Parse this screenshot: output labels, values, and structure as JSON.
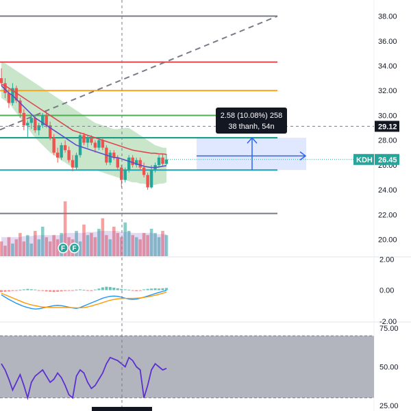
{
  "chart_data": {
    "type": "candlestick",
    "symbol": "KDH",
    "last_price": "26.45",
    "crosshair_price": "29.12",
    "price_axis": {
      "range": [
        18.6,
        39.3
      ],
      "ticks": [
        "38.00",
        "36.00",
        "34.00",
        "32.00",
        "30.00",
        "28.00",
        "26.00",
        "24.00",
        "22.00",
        "20.00"
      ]
    },
    "macd_axis": {
      "range": [
        -2.05,
        2.1
      ],
      "ticks": [
        "2.00",
        "0.00",
        "-2.00"
      ]
    },
    "rsi_axis": {
      "range": [
        21.5,
        78.5
      ],
      "ticks": [
        "75.00",
        "50.00",
        "25.00"
      ]
    },
    "rsi_band": [
      30,
      70
    ],
    "horizontal_levels": [
      {
        "price": 38.0,
        "color": "#787b86"
      },
      {
        "price": 34.3,
        "color": "#e0454f"
      },
      {
        "price": 32.0,
        "color": "#f7a21b"
      },
      {
        "price": 30.0,
        "color": "#4caf50"
      },
      {
        "price": 28.2,
        "color": "#089981"
      },
      {
        "price": 25.6,
        "color": "#26a0b0"
      },
      {
        "price": 22.1,
        "color": "#787b86"
      }
    ],
    "trend_line": {
      "from_price": 30.5,
      "to_price": 38.0
    },
    "measure_box": {
      "from_price": 25.6,
      "to_price": 28.2
    },
    "tooltip": {
      "line1": "2.58 (10.08%) 258",
      "line2": "38 thanh, 54n"
    },
    "markers": [
      "F",
      "F"
    ],
    "candles": [
      [
        33.0,
        33.8,
        32.4,
        32.6
      ],
      [
        32.6,
        33.0,
        31.4,
        31.8
      ],
      [
        31.8,
        32.2,
        30.6,
        31.0
      ],
      [
        31.0,
        32.6,
        30.8,
        32.2
      ],
      [
        32.2,
        32.4,
        31.0,
        31.2
      ],
      [
        31.2,
        31.4,
        29.8,
        30.2
      ],
      [
        30.2,
        30.5,
        28.8,
        29.2
      ],
      [
        29.2,
        29.6,
        28.2,
        29.4
      ],
      [
        29.4,
        30.0,
        28.9,
        29.8
      ],
      [
        29.8,
        30.0,
        28.6,
        28.8
      ],
      [
        28.8,
        29.4,
        28.4,
        29.2
      ],
      [
        29.2,
        30.2,
        29.0,
        30.0
      ],
      [
        30.0,
        30.3,
        29.0,
        29.2
      ],
      [
        29.2,
        29.5,
        28.0,
        28.2
      ],
      [
        28.2,
        28.5,
        26.8,
        27.0
      ],
      [
        27.0,
        27.4,
        26.2,
        26.6
      ],
      [
        26.6,
        27.8,
        26.4,
        27.6
      ],
      [
        27.6,
        28.0,
        27.0,
        27.2
      ],
      [
        27.2,
        27.5,
        26.2,
        26.4
      ],
      [
        26.4,
        26.8,
        25.5,
        25.8
      ],
      [
        25.8,
        27.0,
        25.6,
        26.8
      ],
      [
        26.8,
        28.6,
        26.6,
        28.4
      ],
      [
        28.4,
        28.6,
        27.6,
        27.8
      ],
      [
        27.8,
        28.4,
        27.4,
        28.2
      ],
      [
        28.2,
        28.4,
        27.6,
        27.8
      ],
      [
        27.8,
        28.0,
        27.0,
        27.4
      ],
      [
        27.4,
        28.2,
        27.2,
        28.0
      ],
      [
        28.0,
        28.2,
        27.2,
        27.4
      ],
      [
        27.4,
        27.6,
        26.0,
        26.2
      ],
      [
        26.2,
        27.2,
        26.0,
        27.0
      ],
      [
        27.0,
        27.2,
        26.4,
        26.6
      ],
      [
        26.6,
        26.8,
        25.6,
        25.8
      ],
      [
        25.8,
        26.0,
        24.2,
        24.8
      ],
      [
        24.8,
        25.8,
        24.6,
        25.6
      ],
      [
        25.6,
        26.8,
        25.4,
        26.6
      ],
      [
        26.6,
        26.8,
        25.8,
        26.0
      ],
      [
        26.0,
        26.6,
        25.8,
        26.4
      ],
      [
        26.4,
        26.6,
        25.6,
        25.8
      ],
      [
        25.8,
        26.2,
        25.0,
        25.2
      ],
      [
        25.2,
        25.4,
        24.0,
        24.2
      ],
      [
        24.2,
        26.0,
        24.1,
        25.6
      ],
      [
        25.6,
        26.2,
        25.4,
        26.0
      ],
      [
        26.0,
        26.8,
        25.8,
        26.6
      ],
      [
        26.6,
        26.9,
        25.9,
        26.1
      ],
      [
        26.1,
        26.9,
        26.0,
        26.45
      ]
    ],
    "sma20": [
      32.5,
      32.4,
      32.2,
      32.0,
      31.8,
      31.6,
      31.4,
      31.2,
      31.0,
      30.8,
      30.6,
      30.4,
      30.2,
      30.0,
      29.8,
      29.6,
      29.4,
      29.2,
      29.0,
      28.8,
      28.7,
      28.6,
      28.5,
      28.4,
      28.3,
      28.2,
      28.1,
      28.0,
      27.9,
      27.8,
      27.7,
      27.6,
      27.5,
      27.4,
      27.3,
      27.2,
      27.15,
      27.1,
      27.05,
      27.0,
      26.95,
      26.95,
      26.9,
      26.9,
      26.85
    ],
    "sma9": [
      32.4,
      32.1,
      31.8,
      31.6,
      31.3,
      31.0,
      30.7,
      30.4,
      30.1,
      29.8,
      29.6,
      29.4,
      29.2,
      29.0,
      28.8,
      28.6,
      28.4,
      28.2,
      28.0,
      27.8,
      27.6,
      27.5,
      27.4,
      27.3,
      27.2,
      27.1,
      27.0,
      26.9,
      26.8,
      26.7,
      26.6,
      26.6,
      26.5,
      26.4,
      26.3,
      26.2,
      26.1,
      26.0,
      25.9,
      25.85,
      25.8,
      25.8,
      25.85,
      25.9,
      25.95
    ],
    "band_upper": [
      34.3,
      34.2,
      34.0,
      33.8,
      33.6,
      33.4,
      33.2,
      33.0,
      32.8,
      32.6,
      32.4,
      32.2,
      32.0,
      31.8,
      31.6,
      31.4,
      31.2,
      31.0,
      30.8,
      30.6,
      30.4,
      30.2,
      30.0,
      29.8,
      29.6,
      29.4,
      29.3,
      29.2,
      29.1,
      29.0,
      28.9,
      28.9,
      28.95,
      29.0,
      29.0,
      28.8,
      28.6,
      28.4,
      28.2,
      28.0,
      27.8,
      27.6,
      27.5,
      27.4,
      27.4
    ],
    "band_lower": [
      31.4,
      31.2,
      31.0,
      30.6,
      30.2,
      29.8,
      29.4,
      29.0,
      28.6,
      28.2,
      27.9,
      27.6,
      27.3,
      27.0,
      26.8,
      26.6,
      26.4,
      26.2,
      26.0,
      25.8,
      25.7,
      25.6,
      25.6,
      25.6,
      25.6,
      25.6,
      25.5,
      25.4,
      25.3,
      25.2,
      25.1,
      25.0,
      24.9,
      24.8,
      24.7,
      24.6,
      24.6,
      24.5,
      24.5,
      24.4,
      24.4,
      24.4,
      24.5,
      24.5,
      24.6
    ],
    "volume": [
      7,
      5,
      9,
      6,
      8,
      11,
      7,
      10,
      6,
      12,
      8,
      14,
      9,
      7,
      10,
      8,
      11,
      26,
      9,
      8,
      12,
      7,
      15,
      10,
      11,
      9,
      13,
      18,
      10,
      8,
      14,
      11,
      9,
      16,
      12,
      10,
      9,
      8,
      11,
      10,
      13,
      11,
      9,
      12,
      10
    ],
    "volume_ma": [
      9,
      9,
      9,
      9,
      9,
      9,
      9.5,
      9.5,
      9.5,
      10,
      10,
      10,
      10,
      10,
      10,
      10,
      10,
      11,
      11,
      11,
      11,
      11,
      11,
      11.5,
      11.5,
      11.5,
      12,
      12,
      12,
      12,
      12,
      12,
      11.5,
      11.5,
      11.5,
      11,
      11,
      11,
      11,
      11,
      11,
      10.5,
      10.5,
      10.5,
      10.5
    ],
    "macd_hist": [
      -0.12,
      -0.1,
      -0.08,
      -0.05,
      -0.03,
      0.02,
      0.05,
      0.08,
      0.06,
      0.04,
      -0.02,
      -0.05,
      -0.08,
      -0.1,
      -0.12,
      -0.1,
      -0.08,
      -0.05,
      -0.03,
      -0.02,
      0.03,
      0.05,
      0.02,
      -0.03,
      -0.05,
      0.04,
      0.1,
      0.18,
      0.22,
      0.2,
      0.16,
      0.12,
      0.08,
      0.05,
      0.03,
      -0.04,
      -0.06,
      -0.03,
      0.05,
      0.08,
      0.1,
      0.12,
      0.1,
      0.12,
      0.14
    ],
    "macd": [
      -0.3,
      -0.45,
      -0.6,
      -0.72,
      -0.85,
      -0.95,
      -1.05,
      -1.12,
      -1.18,
      -1.22,
      -1.2,
      -1.15,
      -1.1,
      -1.05,
      -1.0,
      -0.98,
      -1.0,
      -1.05,
      -1.1,
      -1.15,
      -1.18,
      -1.12,
      -1.02,
      -0.92,
      -0.82,
      -0.72,
      -0.62,
      -0.52,
      -0.45,
      -0.4,
      -0.38,
      -0.4,
      -0.45,
      -0.52,
      -0.58,
      -0.6,
      -0.58,
      -0.52,
      -0.45,
      -0.38,
      -0.3,
      -0.22,
      -0.15,
      -0.08,
      -0.02
    ],
    "macd_signal": [
      -0.2,
      -0.3,
      -0.4,
      -0.5,
      -0.6,
      -0.7,
      -0.8,
      -0.88,
      -0.95,
      -1.0,
      -1.05,
      -1.08,
      -1.1,
      -1.11,
      -1.12,
      -1.12,
      -1.12,
      -1.12,
      -1.12,
      -1.13,
      -1.14,
      -1.14,
      -1.12,
      -1.08,
      -1.02,
      -0.95,
      -0.88,
      -0.8,
      -0.72,
      -0.65,
      -0.6,
      -0.56,
      -0.54,
      -0.53,
      -0.53,
      -0.53,
      -0.52,
      -0.5,
      -0.47,
      -0.43,
      -0.38,
      -0.33,
      -0.27,
      -0.2,
      -0.14
    ],
    "rsi": [
      52,
      48,
      42,
      35,
      40,
      45,
      38,
      30,
      40,
      44,
      46,
      48,
      44,
      40,
      42,
      46,
      43,
      38,
      32,
      30,
      44,
      48,
      46,
      40,
      36,
      38,
      42,
      46,
      52,
      56,
      55,
      54,
      52,
      50,
      56,
      54,
      50,
      48,
      30,
      38,
      48,
      52,
      50,
      48,
      49
    ]
  }
}
